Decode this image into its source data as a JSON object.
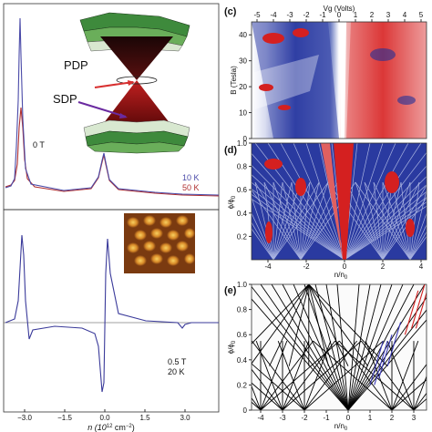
{
  "figure": {
    "left_panel": {
      "top_labels": {
        "pdp": "PDP",
        "sdp": "SDP",
        "field": "0 T",
        "temp_10k": "10 K",
        "temp_50k": "50 K"
      },
      "bottom_labels": {
        "field": "0.5 T",
        "temp": "20 K"
      },
      "x_axis_label": "n (10",
      "x_axis_exp": "12",
      "x_axis_unit": " cm",
      "x_axis_unit_exp": "−2",
      "x_axis_close": ")",
      "x_ticks": [
        "−3.0",
        "−1.5",
        "0.0",
        "1.5",
        "3.0"
      ]
    },
    "panel_c": {
      "label": "(c)",
      "top_axis_label": "Vg (Volts)",
      "top_ticks": [
        "-5",
        "-4",
        "-3",
        "-2",
        "-1",
        "0",
        "1",
        "2",
        "3",
        "4",
        "5"
      ],
      "y_axis_label": "B (Tesla)",
      "y_ticks": [
        "0",
        "10",
        "20",
        "30",
        "40"
      ]
    },
    "panel_d": {
      "label": "(d)",
      "y_axis_label": "ϕ/ϕ",
      "y_axis_sub": "0",
      "y_ticks": [
        "0.2",
        "0.4",
        "0.6",
        "0.8",
        "1.0"
      ],
      "x_ticks": [
        "-4",
        "-2",
        "0",
        "2",
        "4"
      ],
      "x_axis_label": "n/n",
      "x_axis_sub": "0"
    },
    "panel_e": {
      "label": "(e)",
      "y_axis_label": "ϕ/ϕ",
      "y_axis_sub": "0",
      "y_ticks": [
        "0",
        "0.2",
        "0.4",
        "0.6",
        "0.8",
        "1.0"
      ],
      "x_ticks": [
        "-4",
        "-3",
        "-2",
        "-1",
        "0",
        "1",
        "2",
        "3"
      ],
      "x_axis_label": "n/n",
      "x_axis_sub": "0"
    },
    "colors": {
      "curve_10k": "#4a4aa8",
      "curve_50k": "#b03030",
      "map_red": "#d42020",
      "map_blue": "#20309a",
      "cone_dark": "#2a0c0c",
      "cone_red": "#b01818",
      "band_green": "#3e8a3c"
    }
  }
}
